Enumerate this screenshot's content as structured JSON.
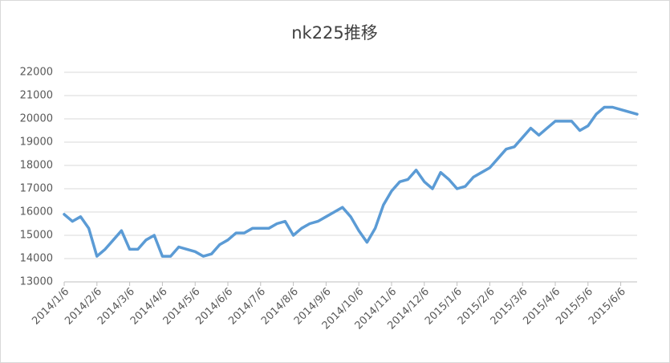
{
  "chart_data": {
    "type": "line",
    "title": "nk225推移",
    "categories": [
      "2014/1/6",
      null,
      null,
      null,
      "2014/2/6",
      null,
      null,
      null,
      "2014/3/6",
      null,
      null,
      null,
      "2014/4/6",
      null,
      null,
      null,
      "2014/5/6",
      null,
      null,
      null,
      "2014/6/6",
      null,
      null,
      null,
      "2014/7/6",
      null,
      null,
      null,
      "2014/8/6",
      null,
      null,
      null,
      "2014/9/6",
      null,
      null,
      null,
      "2014/10/6",
      null,
      null,
      null,
      "2014/11/6",
      null,
      null,
      null,
      "2014/12/6",
      null,
      null,
      null,
      "2015/1/6",
      null,
      null,
      null,
      "2015/2/6",
      null,
      null,
      null,
      "2015/3/6",
      null,
      null,
      null,
      "2015/4/6",
      null,
      null,
      null,
      "2015/5/6",
      null,
      null,
      null,
      "2015/6/6",
      null,
      null
    ],
    "series": [
      {
        "name": "nk225",
        "color": "#5b9bd5",
        "values": [
          15900,
          15600,
          15800,
          15300,
          14100,
          14400,
          14800,
          15200,
          14400,
          14400,
          14800,
          15000,
          14100,
          14100,
          14500,
          14400,
          14300,
          14100,
          14200,
          14600,
          14800,
          15100,
          15100,
          15300,
          15300,
          15300,
          15500,
          15600,
          15000,
          15300,
          15500,
          15600,
          15800,
          16000,
          16200,
          15800,
          15200,
          14700,
          15300,
          16300,
          16900,
          17300,
          17400,
          17800,
          17300,
          17000,
          17700,
          17400,
          17000,
          17100,
          17500,
          17700,
          17900,
          18300,
          18700,
          18800,
          19200,
          19600,
          19300,
          19600,
          19900,
          19900,
          19900,
          19500,
          19700,
          20200,
          20500,
          20500,
          20400,
          20300,
          20200
        ]
      }
    ],
    "ylim": [
      13000,
      22000
    ],
    "yticks": [
      13000,
      14000,
      15000,
      16000,
      17000,
      18000,
      19000,
      20000,
      21000,
      22000
    ],
    "grid": true
  }
}
